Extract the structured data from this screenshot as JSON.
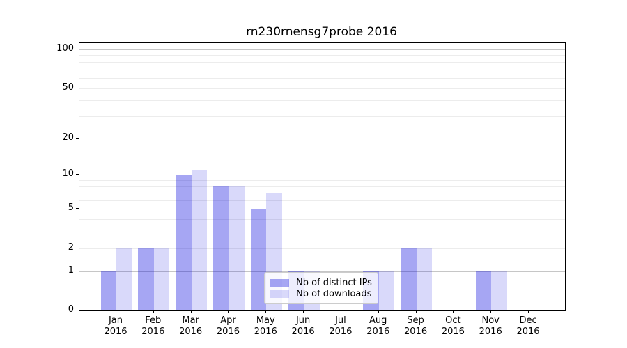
{
  "title": "rn230rnensg7probe 2016",
  "chart_data": {
    "type": "bar",
    "title": "rn230rnensg7probe 2016",
    "categories": [
      "Jan",
      "Feb",
      "Mar",
      "Apr",
      "May",
      "Jun",
      "Jul",
      "Aug",
      "Sep",
      "Oct",
      "Nov",
      "Dec"
    ],
    "xtick_year": "2016",
    "series": [
      {
        "name": "Nb of distinct IPs",
        "color": "#0000dd59",
        "values": [
          1,
          2,
          10,
          8,
          5,
          1,
          0,
          1,
          2,
          0,
          1,
          0
        ]
      },
      {
        "name": "Nb of downloads",
        "color": "#0000dd26",
        "values": [
          2,
          2,
          11,
          8,
          7,
          1,
          0,
          1,
          2,
          0,
          1,
          0
        ]
      }
    ],
    "yscale": "log1p",
    "ylim": [
      0,
      100
    ],
    "yticks": [
      100,
      50,
      20,
      10,
      5,
      2,
      1,
      0
    ],
    "grid_major": [
      1,
      10,
      100
    ],
    "grid_minor": [
      2,
      3,
      4,
      5,
      6,
      7,
      8,
      9,
      20,
      30,
      40,
      50,
      60,
      70,
      80,
      90
    ],
    "grid": "on",
    "legend_position": "lower-center-inside"
  }
}
